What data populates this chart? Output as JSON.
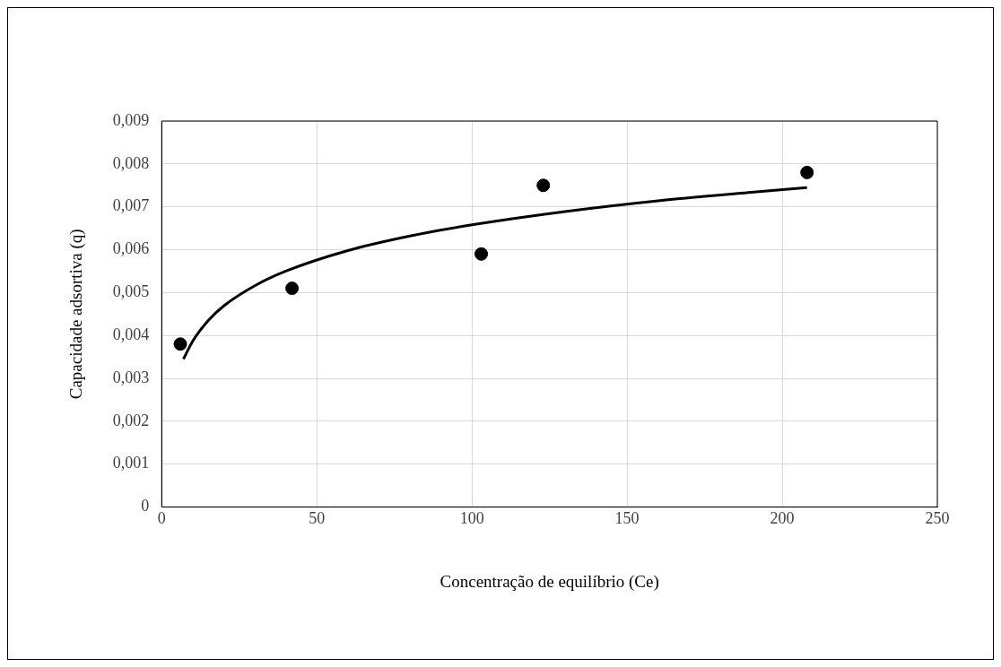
{
  "chart_data": {
    "type": "scatter",
    "xlabel": "Concentração de equilíbrio (Ce)",
    "ylabel": "Capacidade adsortiva (q)",
    "series": [
      {
        "color": "#000000",
        "marker": "circle",
        "x": [
          6,
          42,
          103,
          123,
          208
        ],
        "values": [
          0.0038,
          0.0051,
          0.0059,
          0.0075,
          0.0078
        ]
      },
      {
        "type": "line",
        "color": "#000000",
        "marker": "none",
        "line_style": "solid",
        "x": [
          7,
          10,
          15,
          20,
          30,
          40,
          60,
          80,
          100,
          130,
          160,
          190,
          208
        ],
        "values": [
          0.00345,
          0.00387,
          0.00435,
          0.00469,
          0.00516,
          0.0055,
          0.00598,
          0.00632,
          0.00658,
          0.00689,
          0.00714,
          0.00734,
          0.00745
        ]
      }
    ],
    "xlim": [
      0,
      250
    ],
    "xticks": [
      0,
      50,
      100,
      150,
      200,
      250
    ],
    "ylim": [
      0,
      0.009
    ],
    "yticks": [
      0,
      {
        "value": 0.001,
        "label": "0,001"
      },
      {
        "value": 0.002,
        "label": "0,002"
      },
      {
        "value": 0.003,
        "label": "0,003"
      },
      {
        "value": 0.004,
        "label": "0,004"
      },
      {
        "value": 0.005,
        "label": "0,005"
      },
      {
        "value": 0.006,
        "label": "0,006"
      },
      {
        "value": 0.007,
        "label": "0,007"
      },
      {
        "value": 0.008,
        "label": "0,008"
      },
      {
        "value": 0.009,
        "label": "0,009"
      }
    ],
    "grid": true,
    "legend": false
  }
}
